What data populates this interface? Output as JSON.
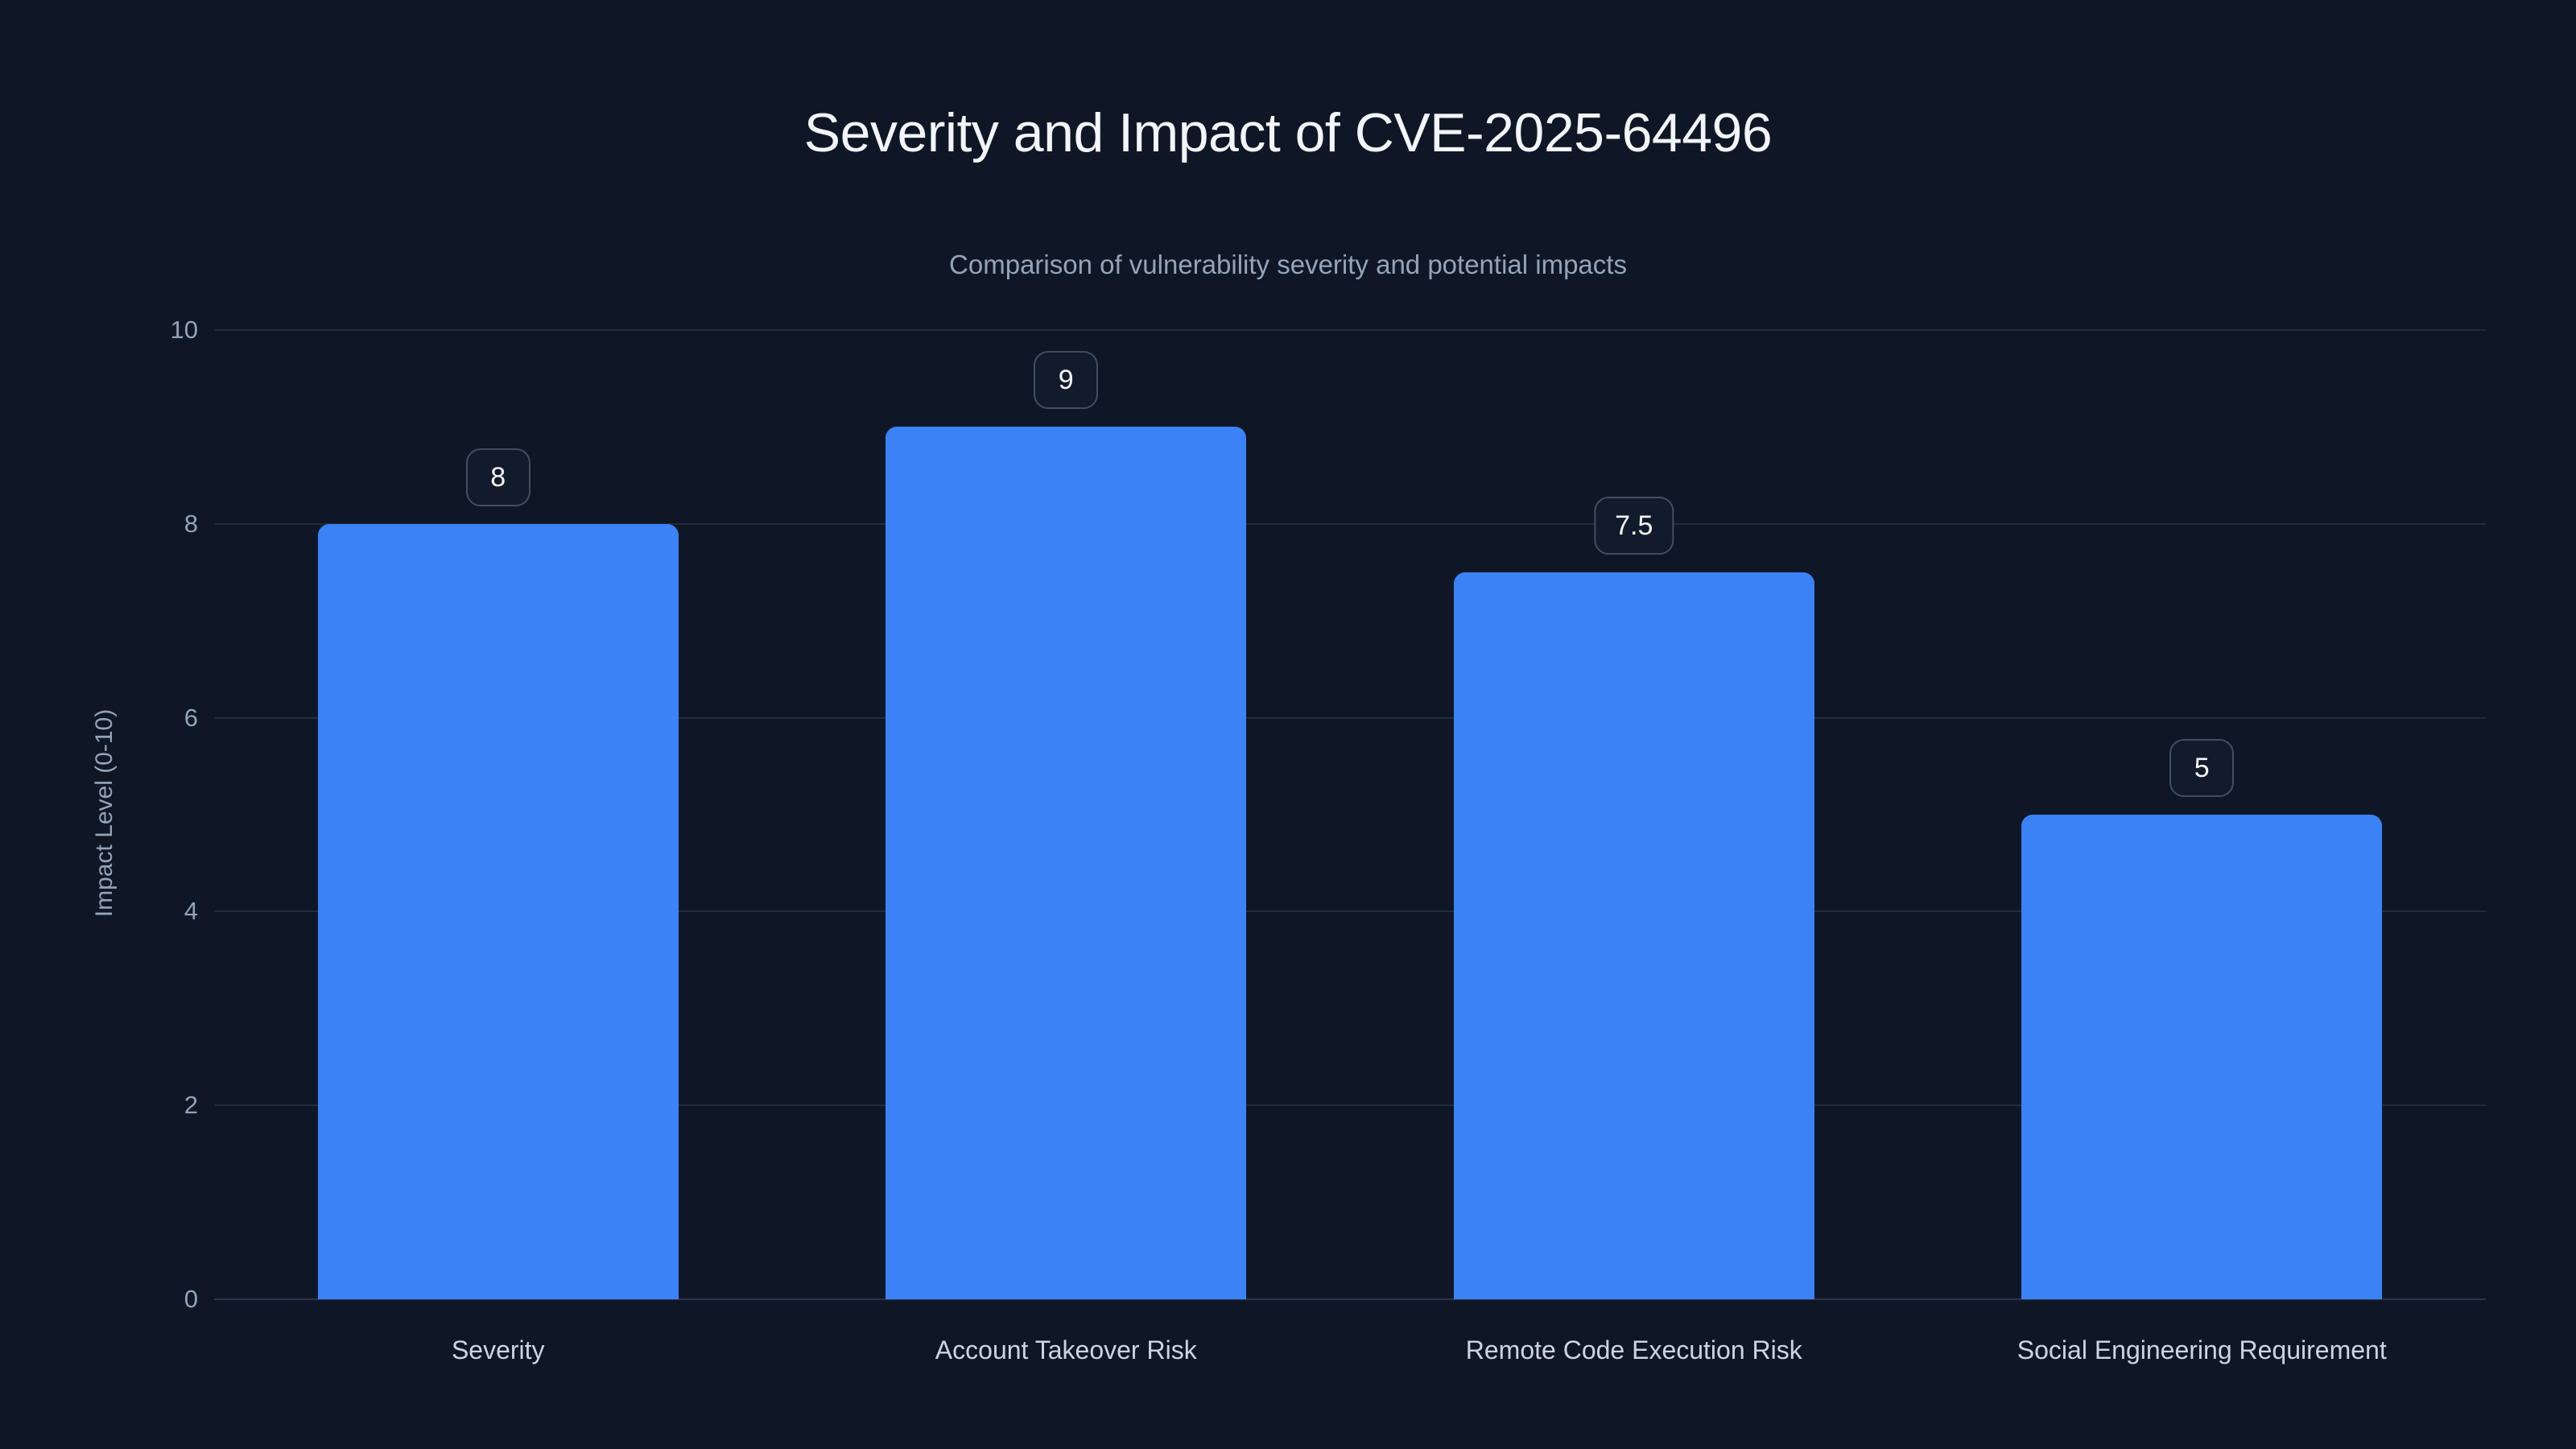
{
  "page": {
    "title": "Severity and Impact of CVE-2025-64496",
    "subtitle": "Comparison of vulnerability severity and potential impacts"
  },
  "colors": {
    "background": "#0f1726",
    "bar": "#3b82f6",
    "gridline": "#222c3d",
    "axis_baseline": "#2a3549",
    "title_text": "#f2f5f9",
    "subtitle_text": "#94a3b8",
    "tick_text": "#94a3b8",
    "category_text": "#cbd5e1",
    "value_chip_border": "#414d61",
    "value_chip_bg": "#121b2b",
    "value_chip_text": "#f5f7fa"
  },
  "chart_data": {
    "type": "bar",
    "title": "Severity and Impact of CVE-2025-64496",
    "subtitle": "Comparison of vulnerability severity and potential impacts",
    "categories": [
      "Severity",
      "Account Takeover Risk",
      "Remote Code Execution Risk",
      "Social Engineering Requirement"
    ],
    "values": [
      8,
      9,
      7.5,
      5
    ],
    "value_labels": [
      "8",
      "9",
      "7.5",
      "5"
    ],
    "xlabel": "",
    "ylabel": "Impact Level (0-10)",
    "ylim": [
      0,
      10
    ],
    "yticks": [
      0,
      2,
      4,
      6,
      8,
      10
    ],
    "grid": true,
    "legend": "none",
    "bar_color": "#3b82f6",
    "value_label_style": "rounded-chip-above-bar"
  }
}
